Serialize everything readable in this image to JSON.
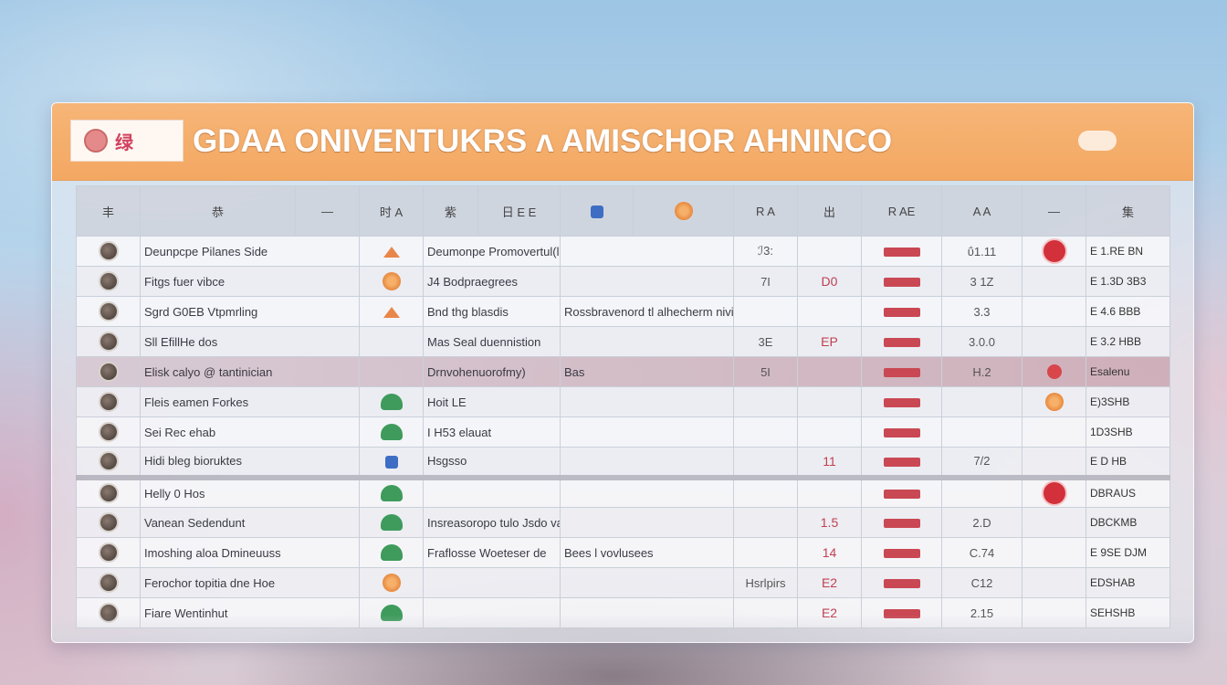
{
  "header": {
    "logo_text": "绿",
    "title": "GDAA  ONIVENTUKRS ʌ AMISCHOR AHNINCO"
  },
  "columns": [
    "丰",
    "恭",
    "—",
    "时 A",
    "紫",
    "日 E E",
    "",
    "",
    "R A",
    "出",
    "R AE",
    "A A",
    "—",
    "集"
  ],
  "rows": [
    {
      "name": "Deunpcpe Pilanes Side",
      "item": "Deumonpe Promovertul(ll)",
      "v1": "ℐ3:",
      "score": "",
      "mark": "ΰ1.11",
      "code": "E 1.RE BN",
      "icon_a": "tri",
      "icon_b": "red-dot"
    },
    {
      "name": "Fitgs fuer vibce",
      "item": "J4 Bodpraegrees",
      "v1": "7I",
      "score": "D0",
      "mark": "3 1Z",
      "code": "E 1.3D 3B3",
      "icon_a": "flower",
      "icon_b": "none"
    },
    {
      "name": "Sgrd G0EB Vtpmrling",
      "item": "Bnd thg blasdis",
      "v1": "",
      "score": "",
      "mark": "3.3",
      "code": "E 4.6 BBB",
      "icon_a": "tri",
      "icon_b": "none",
      "extra": "Rossbravenord tl alhecherm niving"
    },
    {
      "name": "Sll EfillHe dos",
      "item": "Mas Seal duennistion",
      "v1": "3E",
      "score": "EP",
      "mark": "3.0.0",
      "code": "E 3.2 HBB",
      "icon_a": "none",
      "icon_b": "none"
    },
    {
      "name": "Elisk calyo @ tantinician",
      "item": "Drnvohenuorofmy)",
      "v1": "5I",
      "score": "",
      "mark": "H.2",
      "code": "Esalenu",
      "icon_a": "none",
      "icon_b": "red-sm",
      "extra": "Bas",
      "highlight": true
    },
    {
      "name": "Fleis eamen Forkes",
      "item": "Hoit LE",
      "v1": "",
      "score": "",
      "mark": "",
      "code": "E)3SHB",
      "icon_a": "leaf",
      "icon_b": "flower"
    },
    {
      "name": "Sei Rec ehab",
      "item": "I H53 elauat",
      "v1": "",
      "score": "",
      "mark": "",
      "code": "1D3SHB",
      "icon_a": "leaf",
      "icon_b": "none"
    },
    {
      "name": "Hidi bleg bioruktes",
      "item": "Hsgsso",
      "v1": "",
      "score": "11",
      "mark": "7/2",
      "code": "E D HB",
      "icon_a": "blue",
      "icon_b": "none"
    },
    {
      "name": "Helly 0 Hos",
      "item": "",
      "v1": "",
      "score": "",
      "mark": "",
      "code": "DBRAUS",
      "icon_a": "leaf",
      "icon_b": "red-dot",
      "gap": true
    },
    {
      "name": "Vanean Sedendunt",
      "item": "Insreasoropo tulo Jsdo vaartm",
      "v1": "",
      "score": "1.5",
      "mark": "2.D",
      "code": "DBCKMB",
      "icon_a": "leaf",
      "icon_b": "none"
    },
    {
      "name": "Imoshing aloa Dmineuuss",
      "item": "Fraflosse Woeteser de",
      "v1": "",
      "score": "14",
      "mark": "C.74",
      "code": "E 9SE DJM",
      "icon_a": "leaf",
      "icon_b": "none",
      "extra": "Bees l vovlusees"
    },
    {
      "name": "Ferochor topitia dne Hoe",
      "item": "",
      "v1": "Hsrlpirs",
      "score": "E2",
      "mark": "C12",
      "code": "EDSHAB",
      "icon_a": "flower",
      "icon_b": "none"
    },
    {
      "name": "Fiare Wentinhut",
      "item": "",
      "v1": "",
      "score": "E2",
      "mark": "2.15",
      "code": "SEHSHB",
      "icon_a": "leaf",
      "icon_b": "none"
    }
  ],
  "colors": {
    "header_bg": "#f3a862",
    "accent_red": "#d2303a",
    "leaf_green": "#3e9b5c",
    "icon_orange": "#e9874a"
  }
}
